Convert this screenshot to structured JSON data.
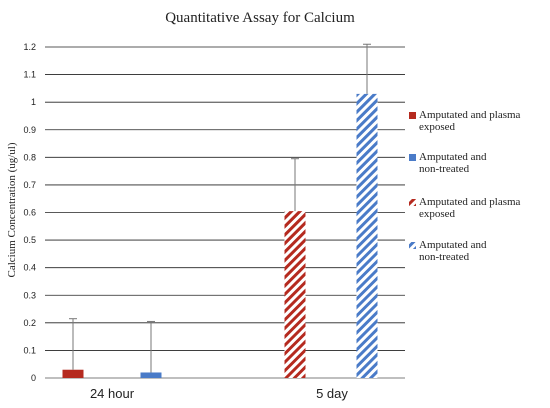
{
  "chart_data": {
    "type": "bar",
    "title": "Quantitative Assay for Calcium",
    "ylabel": "Calcium Concentration (ug/ul)",
    "xlabel": "",
    "ylim": [
      0,
      1.2
    ],
    "yticks": [
      "0",
      "0.1",
      "0.2",
      "0.3",
      "0.4",
      "0.5",
      "0.6",
      "0.7",
      "0.8",
      "0.9",
      "1",
      "1.1",
      "1.2"
    ],
    "ytick_values": [
      0,
      0.1,
      0.2,
      0.3,
      0.4,
      0.5,
      0.6,
      0.7,
      0.8,
      0.9,
      1.0,
      1.1,
      1.2
    ],
    "grid": true,
    "legend_position": "right",
    "categories": [
      "24 hour",
      "5 day"
    ],
    "series": [
      {
        "name": "Amputated and plasma exposed",
        "values": [
          0.03,
          null
        ],
        "errors": [
          0.185,
          null
        ],
        "color": "#b52a1f",
        "pattern": "solid"
      },
      {
        "name": "Amputated and non-treated",
        "values": [
          0.02,
          null
        ],
        "errors": [
          0.185,
          null
        ],
        "color": "#4a7bc8",
        "pattern": "solid"
      },
      {
        "name": "Amputated and plasma exposed",
        "values": [
          null,
          0.605
        ],
        "errors": [
          null,
          0.19
        ],
        "color": "#b52a1f",
        "pattern": "hatched"
      },
      {
        "name": "Amputated and non-treated",
        "values": [
          null,
          1.03
        ],
        "errors": [
          null,
          0.18
        ],
        "color": "#4a7bc8",
        "pattern": "hatched"
      }
    ]
  }
}
